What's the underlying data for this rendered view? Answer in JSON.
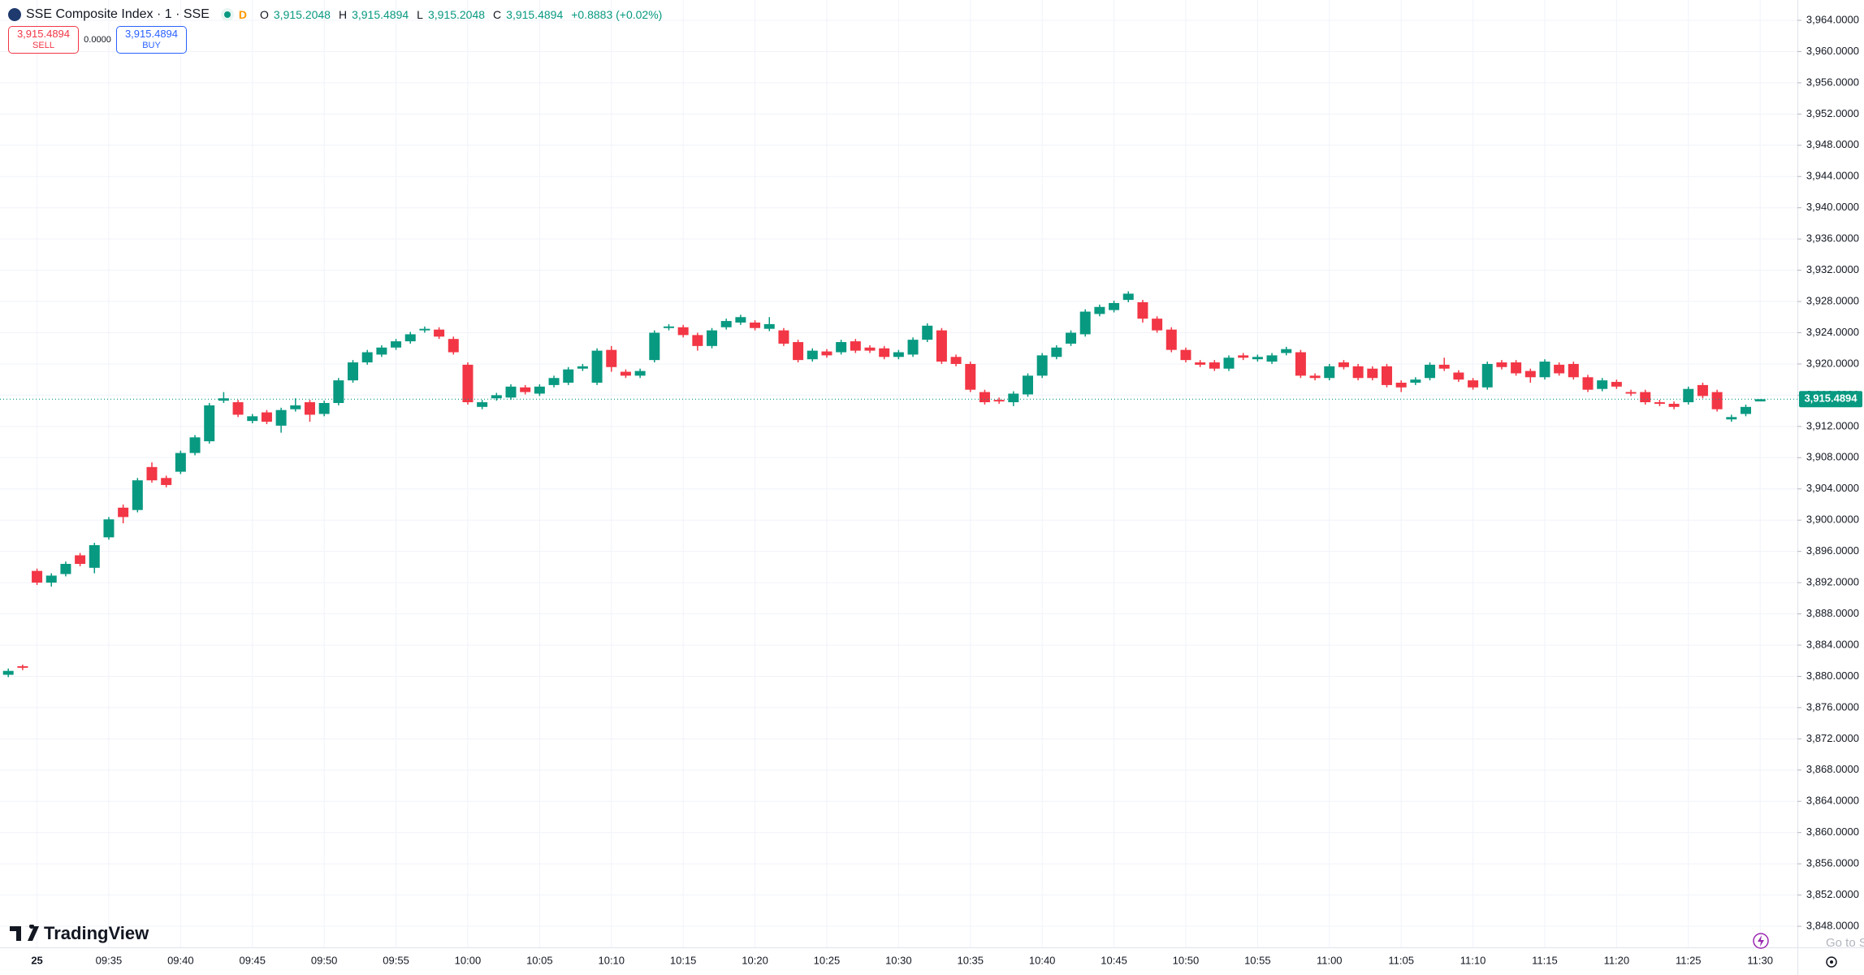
{
  "header": {
    "symbol": "SSE Composite Index · 1 · SSE",
    "market_status": "D",
    "ohlc": [
      {
        "key": "O",
        "value": "3,915.2048"
      },
      {
        "key": "H",
        "value": "3,915.4894"
      },
      {
        "key": "L",
        "value": "3,915.2048"
      },
      {
        "key": "C",
        "value": "3,915.4894"
      }
    ],
    "change": "+0.8883 (+0.02%)"
  },
  "trade": {
    "sell_price": "3,915.4894",
    "sell_label": "SELL",
    "spread": "0.0000",
    "buy_price": "3,915.4894",
    "buy_label": "BUY"
  },
  "branding": "TradingView",
  "go_to": "Go to S",
  "chart_data": {
    "type": "candlestick",
    "up_color": "#089981",
    "down_color": "#f23645",
    "grid": true,
    "categories": [
      null,
      null,
      "25",
      null,
      null,
      null,
      null,
      "09:35",
      null,
      null,
      null,
      null,
      "09:40",
      null,
      null,
      null,
      null,
      "09:45",
      null,
      null,
      null,
      null,
      "09:50",
      null,
      null,
      null,
      null,
      "09:55",
      null,
      null,
      null,
      null,
      "10:00",
      null,
      null,
      null,
      null,
      "10:05",
      null,
      null,
      null,
      null,
      "10:10",
      null,
      null,
      null,
      null,
      "10:15",
      null,
      null,
      null,
      null,
      "10:20",
      null,
      null,
      null,
      null,
      "10:25",
      null,
      null,
      null,
      null,
      "10:30",
      null,
      null,
      null,
      null,
      "10:35",
      null,
      null,
      null,
      null,
      "10:40",
      null,
      null,
      null,
      null,
      "10:45",
      null,
      null,
      null,
      null,
      "10:50",
      null,
      null,
      null,
      null,
      "10:55",
      null,
      null,
      null,
      null,
      "11:00",
      null,
      null,
      null,
      null,
      "11:05",
      null,
      null,
      null,
      null,
      "11:10",
      null,
      null,
      null,
      null,
      "11:15",
      null,
      null,
      null,
      null,
      "11:20",
      null,
      null,
      null,
      null,
      "11:25",
      null,
      null,
      null,
      null,
      "11:30"
    ],
    "open": [
      3880.2,
      3881.3,
      3893.5,
      3892.0,
      3893.1,
      3895.5,
      3893.9,
      3897.8,
      3901.6,
      3901.3,
      3906.8,
      3905.4,
      3906.2,
      3908.6,
      3910.1,
      3915.3,
      3915.1,
      3912.7,
      3913.8,
      3912.1,
      3914.2,
      3915.1,
      3913.6,
      3915.0,
      3917.9,
      3920.2,
      3921.2,
      3922.1,
      3922.9,
      3924.3,
      3924.4,
      3923.2,
      3919.9,
      3914.5,
      3915.6,
      3915.7,
      3917.0,
      3916.2,
      3917.3,
      3917.6,
      3919.4,
      3917.6,
      3921.8,
      3919.0,
      3918.5,
      3920.5,
      3924.6,
      3924.7,
      3923.7,
      3922.3,
      3924.7,
      3925.3,
      3925.3,
      3924.5,
      3924.3,
      3922.8,
      3920.6,
      3921.6,
      3921.5,
      3922.9,
      3922.1,
      3922.0,
      3920.9,
      3921.2,
      3923.1,
      3924.3,
      3920.9,
      3920.0,
      3916.4,
      3915.4,
      3915.1,
      3916.1,
      3918.5,
      3920.9,
      3922.6,
      3923.8,
      3926.4,
      3926.9,
      3928.2,
      3927.9,
      3925.8,
      3924.4,
      3921.8,
      3920.2,
      3920.2,
      3919.4,
      3921.1,
      3920.6,
      3920.3,
      3921.4,
      3921.5,
      3918.5,
      3918.2,
      3920.2,
      3919.7,
      3919.4,
      3919.7,
      3917.6,
      3917.6,
      3918.2,
      3919.9,
      3918.9,
      3917.9,
      3917.0,
      3920.2,
      3920.2,
      3919.1,
      3918.3,
      3919.9,
      3920.0,
      3918.3,
      3916.8,
      3917.7,
      3916.4,
      3916.4,
      3915.1,
      3914.9,
      3915.1,
      3917.3,
      3916.4,
      3912.9,
      3913.6,
      3915.2048
    ],
    "high": [
      3881.0,
      3881.5,
      3893.8,
      3893.2,
      3894.7,
      3895.8,
      3897.1,
      3900.4,
      3902.0,
      3905.4,
      3907.4,
      3905.7,
      3908.9,
      3910.9,
      3915.0,
      3916.4,
      3915.4,
      3913.6,
      3914.1,
      3914.4,
      3915.6,
      3915.4,
      3915.3,
      3918.2,
      3920.5,
      3921.8,
      3922.4,
      3923.2,
      3924.1,
      3924.8,
      3924.7,
      3923.5,
      3920.2,
      3915.4,
      3916.3,
      3917.4,
      3917.3,
      3917.4,
      3918.5,
      3919.6,
      3920.0,
      3922.0,
      3922.3,
      3919.3,
      3919.4,
      3924.3,
      3925.1,
      3925.0,
      3924.0,
      3924.6,
      3925.8,
      3926.3,
      3925.6,
      3926.0,
      3924.6,
      3923.1,
      3922.0,
      3921.9,
      3923.1,
      3923.2,
      3922.4,
      3922.3,
      3921.8,
      3923.4,
      3925.2,
      3924.6,
      3921.2,
      3920.3,
      3916.7,
      3915.7,
      3916.5,
      3918.8,
      3921.4,
      3922.4,
      3924.3,
      3927.0,
      3927.6,
      3928.1,
      3929.3,
      3928.2,
      3926.1,
      3924.7,
      3922.1,
      3920.5,
      3920.5,
      3921.1,
      3921.4,
      3921.2,
      3921.4,
      3922.2,
      3921.8,
      3918.8,
      3920.0,
      3920.5,
      3920.0,
      3919.7,
      3920.0,
      3917.9,
      3918.3,
      3920.2,
      3920.8,
      3919.2,
      3918.2,
      3920.3,
      3920.5,
      3920.5,
      3919.4,
      3920.6,
      3920.2,
      3920.3,
      3918.6,
      3918.2,
      3918.0,
      3916.7,
      3916.7,
      3915.4,
      3915.2,
      3917.1,
      3917.6,
      3916.7,
      3913.5,
      3914.8,
      3915.4894
    ],
    "low": [
      3879.9,
      3880.8,
      3891.7,
      3891.5,
      3892.8,
      3894.1,
      3893.2,
      3897.5,
      3899.6,
      3901.0,
      3904.8,
      3904.2,
      3905.9,
      3908.3,
      3909.8,
      3915.0,
      3913.2,
      3912.4,
      3912.3,
      3911.2,
      3913.9,
      3912.6,
      3913.3,
      3914.7,
      3917.6,
      3919.9,
      3920.9,
      3921.8,
      3922.6,
      3924.0,
      3923.2,
      3921.2,
      3914.8,
      3914.2,
      3915.3,
      3915.4,
      3916.1,
      3915.9,
      3917.0,
      3917.3,
      3919.1,
      3917.3,
      3919.0,
      3918.2,
      3918.2,
      3920.2,
      3924.3,
      3923.4,
      3921.7,
      3922.0,
      3924.4,
      3925.0,
      3924.3,
      3924.2,
      3922.3,
      3920.2,
      3920.3,
      3920.8,
      3921.2,
      3921.4,
      3921.4,
      3920.6,
      3920.6,
      3920.9,
      3922.8,
      3920.0,
      3919.7,
      3916.4,
      3914.8,
      3914.9,
      3914.6,
      3915.8,
      3918.2,
      3920.6,
      3922.3,
      3923.5,
      3926.1,
      3926.6,
      3927.9,
      3925.3,
      3924.0,
      3921.5,
      3920.2,
      3919.6,
      3919.1,
      3919.1,
      3920.5,
      3920.3,
      3920.0,
      3921.1,
      3918.2,
      3917.9,
      3917.9,
      3919.3,
      3917.9,
      3917.9,
      3917.0,
      3916.4,
      3917.3,
      3917.9,
      3919.1,
      3917.7,
      3916.7,
      3916.7,
      3919.3,
      3918.5,
      3917.6,
      3918.0,
      3918.5,
      3918.0,
      3916.4,
      3916.5,
      3916.8,
      3915.9,
      3914.8,
      3914.6,
      3914.2,
      3914.8,
      3915.6,
      3913.9,
      3912.6,
      3913.3,
      3915.2048
    ],
    "close": [
      3880.7,
      3881.1,
      3892.0,
      3892.9,
      3894.4,
      3894.4,
      3896.8,
      3900.1,
      3900.4,
      3905.1,
      3905.1,
      3904.5,
      3908.6,
      3910.6,
      3914.7,
      3915.6,
      3913.5,
      3913.3,
      3912.6,
      3914.1,
      3914.7,
      3913.5,
      3915.0,
      3917.9,
      3920.2,
      3921.5,
      3922.1,
      3922.9,
      3923.8,
      3924.5,
      3923.5,
      3921.5,
      3915.1,
      3915.1,
      3916.0,
      3917.1,
      3916.4,
      3917.1,
      3918.2,
      3919.3,
      3919.7,
      3921.7,
      3919.6,
      3918.5,
      3919.1,
      3924.0,
      3924.8,
      3923.7,
      3922.3,
      3924.3,
      3925.5,
      3926.0,
      3924.6,
      3925.1,
      3922.6,
      3920.5,
      3921.7,
      3921.1,
      3922.8,
      3921.7,
      3921.7,
      3920.9,
      3921.5,
      3923.1,
      3924.9,
      3920.3,
      3920.0,
      3916.7,
      3915.1,
      3915.2,
      3916.2,
      3918.5,
      3921.1,
      3922.1,
      3924.0,
      3926.7,
      3927.3,
      3927.8,
      3929.0,
      3925.8,
      3924.3,
      3921.8,
      3920.5,
      3919.9,
      3919.4,
      3920.8,
      3920.8,
      3920.9,
      3921.1,
      3921.9,
      3918.5,
      3918.2,
      3919.7,
      3919.6,
      3918.2,
      3918.2,
      3917.3,
      3917.0,
      3918.0,
      3919.9,
      3919.4,
      3918.0,
      3917.0,
      3920.0,
      3919.6,
      3918.8,
      3918.3,
      3920.3,
      3918.8,
      3918.3,
      3916.7,
      3917.9,
      3917.1,
      3916.2,
      3915.1,
      3914.9,
      3914.5,
      3916.8,
      3915.9,
      3914.2,
      3913.2,
      3914.5,
      3915.4894
    ],
    "ylim": [
      3845.3,
      3966.6
    ],
    "yticks": [
      {
        "value": 3848,
        "label": "3,848.0000"
      },
      {
        "value": 3852,
        "label": "3,852.0000"
      },
      {
        "value": 3856,
        "label": "3,856.0000"
      },
      {
        "value": 3860,
        "label": "3,860.0000"
      },
      {
        "value": 3864,
        "label": "3,864.0000"
      },
      {
        "value": 3868,
        "label": "3,868.0000"
      },
      {
        "value": 3872,
        "label": "3,872.0000"
      },
      {
        "value": 3876,
        "label": "3,876.0000"
      },
      {
        "value": 3880,
        "label": "3,880.0000"
      },
      {
        "value": 3884,
        "label": "3,884.0000"
      },
      {
        "value": 3888,
        "label": "3,888.0000"
      },
      {
        "value": 3892,
        "label": "3,892.0000"
      },
      {
        "value": 3896,
        "label": "3,896.0000"
      },
      {
        "value": 3900,
        "label": "3,900.0000"
      },
      {
        "value": 3904,
        "label": "3,904.0000"
      },
      {
        "value": 3908,
        "label": "3,908.0000"
      },
      {
        "value": 3912,
        "label": "3,912.0000"
      },
      {
        "value": 3916,
        "label": "3,916.0000"
      },
      {
        "value": 3920,
        "label": "3,920.0000"
      },
      {
        "value": 3924,
        "label": "3,924.0000"
      },
      {
        "value": 3928,
        "label": "3,928.0000"
      },
      {
        "value": 3932,
        "label": "3,932.0000"
      },
      {
        "value": 3936,
        "label": "3,936.0000"
      },
      {
        "value": 3940,
        "label": "3,940.0000"
      },
      {
        "value": 3944,
        "label": "3,944.0000"
      },
      {
        "value": 3948,
        "label": "3,948.0000"
      },
      {
        "value": 3952,
        "label": "3,952.0000"
      },
      {
        "value": 3956,
        "label": "3,956.0000"
      },
      {
        "value": 3960,
        "label": "3,960.0000"
      },
      {
        "value": 3964,
        "label": "3,964.0000"
      }
    ],
    "last_price": {
      "value": 3915.4894,
      "label": "3,915.4894"
    }
  }
}
